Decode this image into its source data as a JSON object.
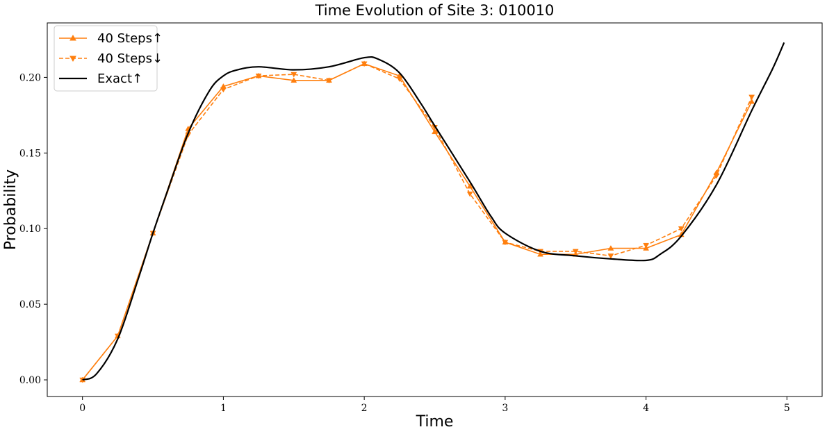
{
  "chart_data": {
    "type": "line",
    "title": "Time Evolution of Site 3: 010010",
    "xlabel": "Time",
    "ylabel": "Probability",
    "xlim": [
      -0.25,
      5.25
    ],
    "ylim": [
      -0.011,
      0.236
    ],
    "xticks": [
      0,
      1,
      2,
      3,
      4,
      5
    ],
    "xtick_labels": [
      "0",
      "1",
      "2",
      "3",
      "4",
      "5"
    ],
    "yticks": [
      0.0,
      0.05,
      0.1,
      0.15,
      0.2
    ],
    "ytick_labels": [
      "0.00",
      "0.05",
      "0.10",
      "0.15",
      "0.20"
    ],
    "grid": false,
    "legend_position": "top-left",
    "series": [
      {
        "name": "40 Steps↑",
        "color": "#ff7f0e",
        "style": "solid",
        "marker": "triangle-up",
        "x": [
          0,
          0.25,
          0.5,
          0.75,
          1.0,
          1.25,
          1.5,
          1.75,
          2.0,
          2.25,
          2.5,
          2.75,
          3.0,
          3.25,
          3.5,
          3.75,
          4.0,
          4.25,
          4.5,
          4.75
        ],
        "y": [
          0.0,
          0.029,
          0.097,
          0.166,
          0.194,
          0.201,
          0.198,
          0.198,
          0.209,
          0.201,
          0.164,
          0.128,
          0.091,
          0.083,
          0.083,
          0.087,
          0.087,
          0.096,
          0.137,
          0.184
        ]
      },
      {
        "name": "40 Steps↓",
        "color": "#ff7f0e",
        "style": "dashed",
        "marker": "triangle-down",
        "x": [
          0,
          0.25,
          0.5,
          0.75,
          1.0,
          1.25,
          1.5,
          1.75,
          2.0,
          2.25,
          2.5,
          2.75,
          3.0,
          3.25,
          3.5,
          3.75,
          4.0,
          4.25,
          4.5,
          4.75
        ],
        "y": [
          0.0,
          0.029,
          0.097,
          0.162,
          0.192,
          0.201,
          0.202,
          0.198,
          0.209,
          0.199,
          0.167,
          0.123,
          0.091,
          0.085,
          0.085,
          0.082,
          0.089,
          0.1,
          0.135,
          0.187
        ]
      },
      {
        "name": "Exact↑",
        "color": "#000000",
        "style": "solid",
        "marker": "none",
        "x": [
          0,
          0.1,
          0.25,
          0.4,
          0.5,
          0.6,
          0.75,
          0.9,
          1.0,
          1.1,
          1.25,
          1.5,
          1.75,
          2.0,
          2.1,
          2.25,
          2.4,
          2.5,
          2.75,
          2.9,
          3.0,
          3.25,
          3.5,
          3.75,
          4.0,
          4.1,
          4.25,
          4.5,
          4.75,
          4.9,
          4.98
        ],
        "y": [
          0.0,
          0.004,
          0.027,
          0.068,
          0.097,
          0.124,
          0.163,
          0.191,
          0.201,
          0.205,
          0.207,
          0.205,
          0.207,
          0.213,
          0.212,
          0.203,
          0.183,
          0.168,
          0.131,
          0.108,
          0.097,
          0.085,
          0.082,
          0.08,
          0.079,
          0.083,
          0.095,
          0.129,
          0.178,
          0.206,
          0.223
        ]
      }
    ]
  }
}
